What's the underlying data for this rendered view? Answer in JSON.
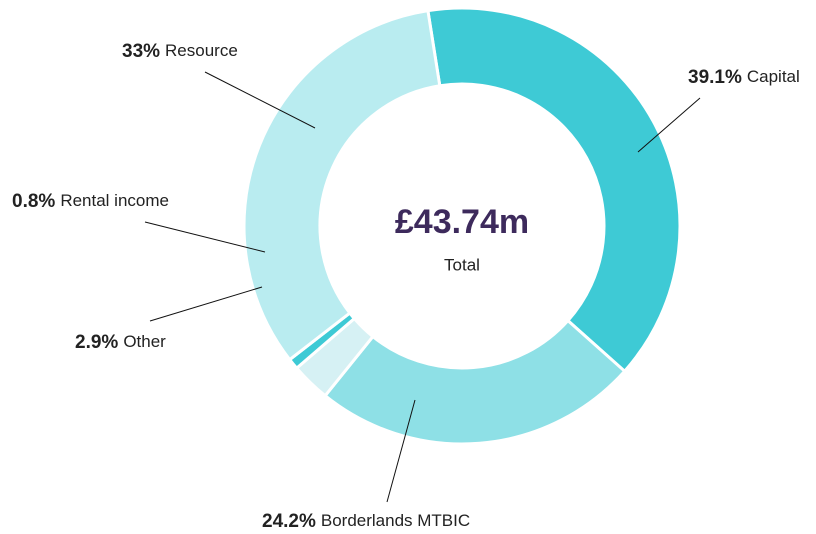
{
  "chart_data": {
    "type": "donut",
    "categories": [
      "Capital",
      "Borderlands MTBIC",
      "Other",
      "Rental income",
      "Resource"
    ],
    "values": [
      39.1,
      24.2,
      2.9,
      0.8,
      33
    ],
    "value_labels": [
      "39.1%",
      "24.2%",
      "2.9%",
      "0.8%",
      "33%"
    ],
    "colors": [
      "#3ecad5",
      "#8ee0e6",
      "#d6f1f4",
      "#3ecad5",
      "#b9ecf0"
    ],
    "center_label": "£43.74m",
    "center_sublabel": "Total"
  }
}
